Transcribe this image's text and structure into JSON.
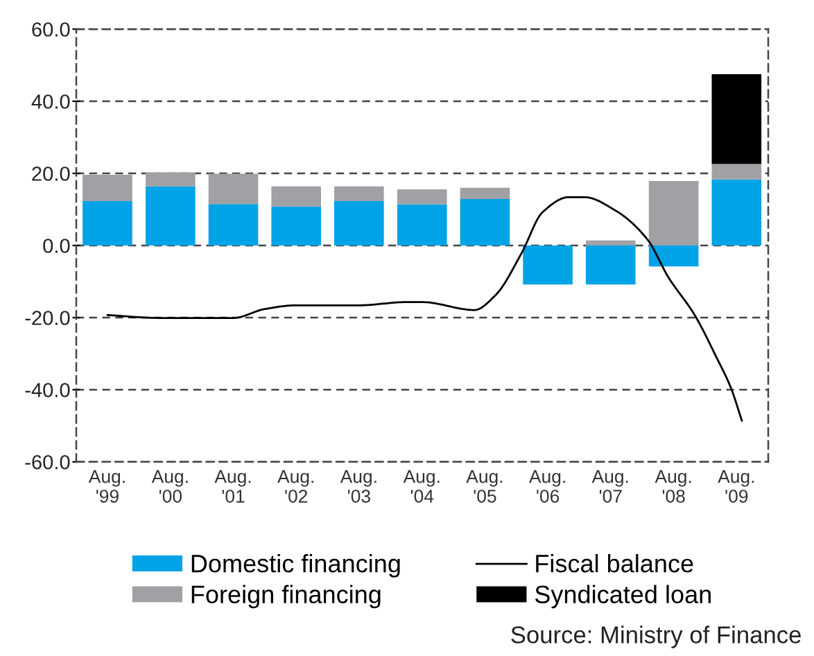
{
  "chart_data": {
    "type": "bar",
    "stacked": true,
    "x": [
      "1999-08",
      "2000-08",
      "2001-08",
      "2002-08",
      "2003-08",
      "2004-08",
      "2005-08",
      "2006-08",
      "2007-08",
      "2008-08",
      "2009-08"
    ],
    "xlim": [
      "1999-02",
      "2010-02"
    ],
    "xticks": [
      {
        "value": "1999-08",
        "label": "Aug.\n'99"
      },
      {
        "value": "2000-08",
        "label": "Aug.\n'00"
      },
      {
        "value": "2001-08",
        "label": "Aug.\n'01"
      },
      {
        "value": "2002-08",
        "label": "Aug.\n'02"
      },
      {
        "value": "2003-08",
        "label": "Aug.\n'03"
      },
      {
        "value": "2004-08",
        "label": "Aug.\n'04"
      },
      {
        "value": "2005-08",
        "label": "Aug.\n'05"
      },
      {
        "value": "2006-08",
        "label": "Aug.\n'06"
      },
      {
        "value": "2007-08",
        "label": "Aug.\n'07"
      },
      {
        "value": "2008-08",
        "label": "Aug.\n'08"
      },
      {
        "value": "2009-08",
        "label": "Aug.\n'09"
      }
    ],
    "ylim": [
      -60,
      60
    ],
    "yticks": [
      {
        "value": -60,
        "label": "-60.0"
      },
      {
        "value": -40,
        "label": "-40.0"
      },
      {
        "value": -20,
        "label": "-20.0"
      },
      {
        "value": 0,
        "label": "0.0"
      },
      {
        "value": 20,
        "label": "20.0"
      },
      {
        "value": 40,
        "label": "40.0"
      },
      {
        "value": 60,
        "label": "60.0"
      }
    ],
    "grid": "y",
    "legend": "bottom",
    "series": [
      {
        "name": "Domestic financing",
        "color": "#00a3e6",
        "values": [
          12.3,
          16.4,
          11.5,
          10.8,
          12.3,
          11.4,
          12.9,
          -10.8,
          -10.8,
          -5.8,
          18.3
        ]
      },
      {
        "name": "Foreign financing",
        "color": "#a0a1a5",
        "values": [
          7.3,
          3.9,
          8.4,
          5.6,
          4.1,
          4.2,
          3.1,
          null,
          1.4,
          17.9,
          4.3
        ]
      },
      {
        "name": "Fiscal balance",
        "type": "line",
        "color": "#000000",
        "x": [
          "1999-08",
          "2000-06",
          "2001-08",
          "2002-02",
          "2002-08",
          "2003-08",
          "2004-05",
          "2004-08",
          "2005-06",
          "2005-10",
          "2006-03",
          "2006-07",
          "2006-12",
          "2007-03",
          "2007-09",
          "2008-03",
          "2008-07",
          "2008-12",
          "2009-04",
          "2009-07",
          "2009-09"
        ],
        "values": [
          -19.3,
          -20.1,
          -20.1,
          -17.6,
          -16.6,
          -16.6,
          -15.7,
          -15.7,
          -17.9,
          -13.8,
          -2.2,
          9.2,
          13.4,
          13.4,
          9.6,
          1.7,
          -8.8,
          -19.3,
          -30.5,
          -39.7,
          -48.6
        ]
      },
      {
        "name": "Syndicated loan",
        "color": "#000000",
        "values": [
          null,
          null,
          null,
          null,
          null,
          null,
          null,
          null,
          null,
          null,
          24.9
        ]
      }
    ],
    "annotations": [
      "Source: Ministry of Finance"
    ]
  }
}
